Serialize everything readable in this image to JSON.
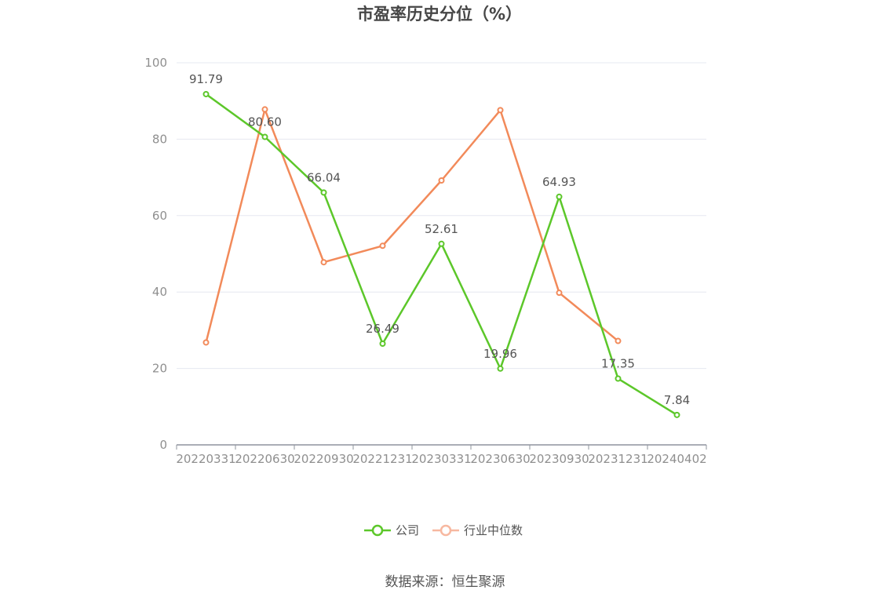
{
  "chart_data": {
    "type": "line",
    "title": "市盈率历史分位（%）",
    "categories": [
      "20220331",
      "20220630",
      "20220930",
      "20221231",
      "20230331",
      "20230630",
      "20230930",
      "20231231",
      "20240402"
    ],
    "ylim": [
      0,
      100
    ],
    "yticks": [
      0,
      20,
      40,
      60,
      80,
      100
    ],
    "grid": true,
    "legend_position": "bottom",
    "series": [
      {
        "name": "公司",
        "color": "#5cc72a",
        "values": [
          91.79,
          80.6,
          66.04,
          26.49,
          52.61,
          19.96,
          64.93,
          17.35,
          7.84
        ],
        "labels": [
          "91.79",
          "80.60",
          "66.04",
          "26.49",
          "52.61",
          "19.96",
          "64.93",
          "17.35",
          "7.84"
        ]
      },
      {
        "name": "行业中位数",
        "color": "#f28a5a",
        "legend_color": "#f7b8a0",
        "values": [
          26.8,
          87.8,
          47.8,
          52.1,
          69.2,
          87.6,
          39.8,
          27.2,
          null
        ]
      }
    ]
  },
  "source_text": "数据来源：恒生聚源"
}
